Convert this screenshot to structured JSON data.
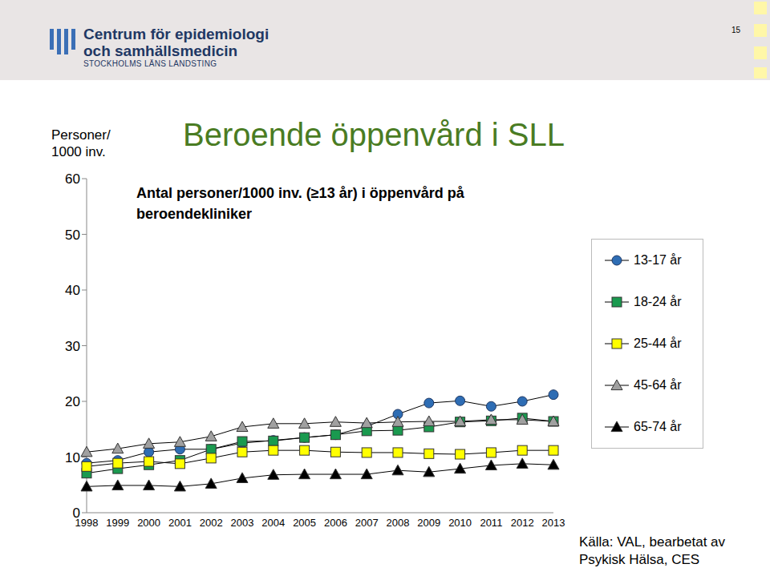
{
  "header": {
    "organization": [
      "Centrum för epidemiologi",
      "och samhällsmedicin"
    ],
    "county": "STOCKHOLMS LÄNS LANDSTING",
    "page": "15"
  },
  "source": "Källa: VAL, bearbetat av Psykisk Hälsa, CES",
  "chart_data": {
    "type": "line",
    "title": "Beroende öppenvård i SLL",
    "subtitle": "Antal personer/1000 inv. (≥13 år) i öppenvård på beroendekliniker",
    "y_label": "Personer/ 1000 inv.",
    "categories": [
      "1998",
      "1999",
      "2000",
      "2001",
      "2002",
      "2003",
      "2004",
      "2005",
      "2006",
      "2007",
      "2008",
      "2009",
      "2010",
      "2011",
      "2012",
      "2013"
    ],
    "series": [
      {
        "name": "13-17 år",
        "color": "#2e6db4",
        "marker": "circle",
        "values": [
          8.9,
          9.4,
          10.9,
          11.4,
          11.4,
          12.5,
          13.0,
          13.5,
          14.0,
          15.5,
          17.7,
          19.7,
          20.1,
          19.1,
          20.0,
          21.2
        ]
      },
      {
        "name": "18-24 år",
        "color": "#1a9a4f",
        "marker": "square",
        "values": [
          7.1,
          7.9,
          8.6,
          9.4,
          11.4,
          12.8,
          12.9,
          13.5,
          14.0,
          14.7,
          14.8,
          15.4,
          16.3,
          16.5,
          17.0,
          16.4
        ]
      },
      {
        "name": "25-44 år",
        "color": "#ffff00",
        "marker": "square",
        "values": [
          8.3,
          8.9,
          9.2,
          8.8,
          9.8,
          10.9,
          11.2,
          11.2,
          10.9,
          10.8,
          10.8,
          10.6,
          10.5,
          10.8,
          11.2,
          11.2
        ]
      },
      {
        "name": "45-64 år",
        "color": "#a0a0a0",
        "marker": "triangle",
        "values": [
          10.9,
          11.5,
          12.4,
          12.7,
          13.7,
          15.4,
          16.0,
          16.0,
          16.3,
          16.1,
          16.3,
          16.4,
          16.4,
          16.7,
          16.7,
          16.4
        ]
      },
      {
        "name": "65-74 år",
        "color": "#000000",
        "marker": "triangle",
        "values": [
          4.7,
          4.9,
          4.9,
          4.7,
          5.2,
          6.2,
          6.8,
          6.9,
          6.9,
          6.9,
          7.6,
          7.3,
          7.9,
          8.5,
          8.8,
          8.6
        ]
      }
    ],
    "ylim": [
      0,
      60
    ],
    "yticks": [
      0,
      10,
      20,
      30,
      40,
      50,
      60
    ],
    "grid": false
  }
}
